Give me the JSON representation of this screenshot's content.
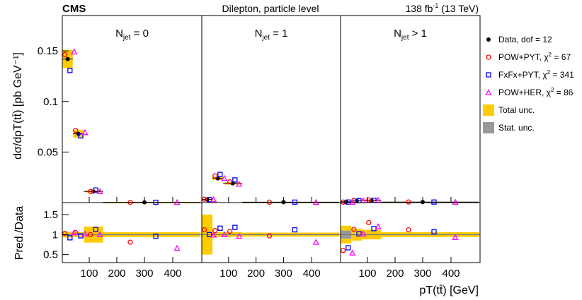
{
  "header": {
    "experiment": "CMS",
    "subtitle": "Dilepton, particle level",
    "lumi_main": "138 fb",
    "lumi_sup": "-1",
    "lumi_rest": " (13 TeV)"
  },
  "chart_data": {
    "type": "scatter",
    "title": "Dilepton, particle level",
    "xlabel": "pT(tt̄) [GeV]",
    "ylabel_top": "dσ/dpT(tt̄) [pb GeV⁻¹]",
    "ylabel_bottom": "Pred./Data",
    "top_ylim": [
      0,
      0.185
    ],
    "bottom_ylim": [
      0.3,
      1.8
    ],
    "top_yticks": [
      0.05,
      0.1,
      0.15
    ],
    "top_ytick_labels": [
      "0.05",
      "0.1",
      "0.15"
    ],
    "bottom_yticks": [
      0.5,
      1,
      1.5
    ],
    "bottom_ytick_labels": [
      "0.5",
      "1",
      "1.5"
    ],
    "xticks": [
      100,
      200,
      300,
      400
    ],
    "xtick_labels": [
      "100",
      "200",
      "300",
      "400"
    ],
    "panels": [
      {
        "label_main": "N",
        "label_sub": "jet",
        "label_rest": " = 0",
        "data": [
          0.142,
          0.068,
          0.011,
          0.0003
        ],
        "total_unc": [
          0.009,
          0.004,
          0.001,
          0.0001
        ],
        "ratios": {
          "POW+PYT": [
            1.03,
            1.05,
            1.0,
            0.81
          ],
          "FxFx+PYT": [
            0.92,
            0.97,
            1.13,
            0.96
          ],
          "POW+HER": [
            1.05,
            1.02,
            1.0,
            0.66
          ]
        },
        "ratio_total_unc": [
          0.07,
          0.06,
          0.2,
          0.06
        ]
      },
      {
        "label_main": "N",
        "label_sub": "jet",
        "label_rest": " = 1",
        "data": [
          0.003,
          0.024,
          0.019,
          0.0004
        ],
        "total_unc": [
          0.0007,
          0.0015,
          0.0012,
          0.0001
        ],
        "ratios": {
          "POW+PYT": [
            1.12,
            1.1,
            1.08,
            0.97
          ],
          "FxFx+PYT": [
            1.0,
            1.16,
            1.18,
            1.12
          ],
          "POW+HER": [
            0.99,
            1.0,
            0.96,
            0.81
          ]
        },
        "ratio_total_unc": [
          0.5,
          0.06,
          0.06,
          0.05
        ]
      },
      {
        "label_main": "N",
        "label_sub": "jet",
        "label_rest": " > 1",
        "data": [
          0.0008,
          0.0018,
          0.002,
          0.0005
        ],
        "total_unc": [
          0.0003,
          0.0004,
          0.0004,
          0.0001
        ],
        "ratios": {
          "POW+PYT": [
            0.6,
            1.13,
            1.3,
            1.12
          ],
          "FxFx+PYT": [
            0.67,
            1.02,
            1.15,
            1.07
          ],
          "POW+HER": [
            0.54,
            1.02,
            1.2,
            0.93
          ]
        },
        "ratio_total_unc": [
          0.22,
          0.15,
          0.12,
          0.06
        ]
      }
    ],
    "bins": [
      0,
      40,
      80,
      150,
      500
    ],
    "bin_centers": [
      20,
      60,
      115,
      300
    ],
    "predictions": [
      {
        "name": "POW+PYT",
        "marker": "circle",
        "color": "#ff0000",
        "offset": 0
      },
      {
        "name": "FxFx+PYT",
        "marker": "square",
        "color": "#0000ff",
        "offset": 12
      },
      {
        "name": "POW+HER",
        "marker": "triangle",
        "color": "#ff00ff",
        "offset": 22
      }
    ],
    "legend": [
      {
        "key": "data",
        "prefix": "Data, dof = 12",
        "sup": "",
        "suffix": ""
      },
      {
        "key": "powpyt",
        "prefix": "POW+PYT, χ",
        "sup": "2",
        "suffix": " = 67"
      },
      {
        "key": "fxfx",
        "prefix": "FxFx+PYT, χ",
        "sup": "2",
        "suffix": " = 341"
      },
      {
        "key": "powher",
        "prefix": "POW+HER, χ",
        "sup": "2",
        "suffix": " = 86"
      },
      {
        "key": "total",
        "prefix": "Total unc.",
        "sup": "",
        "suffix": ""
      },
      {
        "key": "stat",
        "prefix": "Stat. unc.",
        "sup": "",
        "suffix": ""
      }
    ],
    "colors": {
      "data": "#000000",
      "total_unc": "#ffcc00",
      "stat_unc": "#999999"
    }
  }
}
